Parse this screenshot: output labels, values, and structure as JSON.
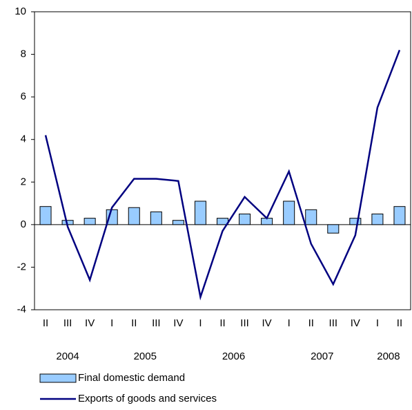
{
  "chart_data": {
    "type": "bar_line",
    "categories": [
      "II",
      "III",
      "IV",
      "I",
      "II",
      "III",
      "IV",
      "I",
      "II",
      "III",
      "IV",
      "I",
      "II",
      "III",
      "IV",
      "I",
      "II"
    ],
    "years": [
      "2004",
      "2005",
      "2006",
      "2007",
      "2008"
    ],
    "series": [
      {
        "name": "Final domestic demand",
        "type": "bar",
        "color": "#99ccff",
        "values": [
          0.85,
          0.2,
          0.3,
          0.7,
          0.8,
          0.6,
          0.2,
          1.1,
          0.3,
          0.5,
          0.3,
          1.1,
          0.7,
          -0.4,
          0.3,
          0.5,
          0.85
        ]
      },
      {
        "name": "Exports of goods and services",
        "type": "line",
        "color": "#000080",
        "values": [
          4.2,
          -0.1,
          -2.6,
          0.8,
          2.15,
          2.15,
          2.05,
          -3.4,
          -0.3,
          1.3,
          0.3,
          2.5,
          -0.9,
          -2.8,
          -0.5,
          5.5,
          8.2
        ]
      }
    ],
    "ylim": [
      -4,
      10
    ],
    "yticks": [
      -4,
      -2,
      0,
      2,
      4,
      6,
      8,
      10
    ]
  }
}
